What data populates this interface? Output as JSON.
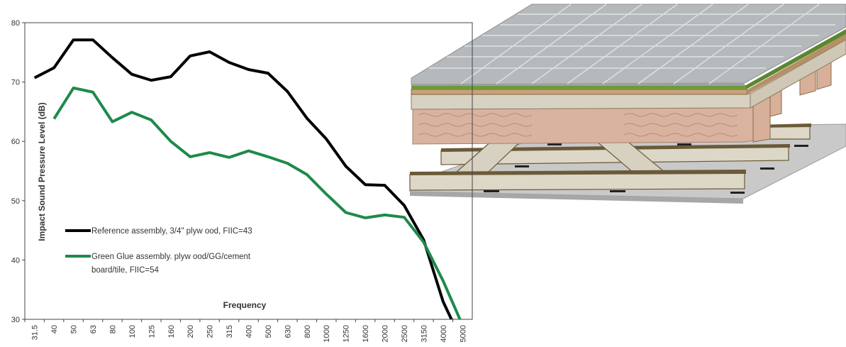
{
  "chart_data": {
    "type": "line",
    "title": "",
    "xlabel": "Frequency",
    "ylabel": "Impact Sound Pressure Level (dB)",
    "ylim": [
      30,
      80
    ],
    "yticks": [
      30,
      40,
      50,
      60,
      70,
      80
    ],
    "grid": false,
    "legend_position": "center-left",
    "categories": [
      "31.5",
      "40",
      "50",
      "63",
      "80",
      "100",
      "125",
      "160",
      "200",
      "250",
      "315",
      "400",
      "500",
      "630",
      "800",
      "1000",
      "1250",
      "1600",
      "2000",
      "2500",
      "3150",
      "4000",
      "5000"
    ],
    "series": [
      {
        "name": "Reference assembly, 3/4\" plyw ood, FIIC=43",
        "color": "#000000",
        "values": [
          70.7,
          72.4,
          77.1,
          77.1,
          74.1,
          71.3,
          70.3,
          70.9,
          74.4,
          75.1,
          73.3,
          72.1,
          71.5,
          68.4,
          63.9,
          60.4,
          55.8,
          52.7,
          52.6,
          49.2,
          43.4,
          33.0,
          26.0
        ]
      },
      {
        "name": "Green Glue assembly.  plyw ood/GG/cement board/tile, FIIC=54",
        "legend_lines": [
          "Green Glue assembly.  plyw ood/GG/cement",
          "board/tile, FIIC=54"
        ],
        "color": "#1e8a4a",
        "values": [
          null,
          63.8,
          69.0,
          68.3,
          63.3,
          64.9,
          63.6,
          60.0,
          57.4,
          58.1,
          57.3,
          58.4,
          57.4,
          56.3,
          54.4,
          51.1,
          48.0,
          47.1,
          47.6,
          47.2,
          43.0,
          36.5,
          29.0
        ]
      }
    ]
  },
  "illustration": {
    "name": "floor-assembly-cutaway",
    "colors": {
      "tile": "#b5b9bc",
      "tile_grout": "#dfe2e4",
      "green_glue": "#6d9a3a",
      "cement_board": "#c7a27a",
      "plywood": "#d8d2c3",
      "insulation": "#dab3a0",
      "joist": "#ddd7c8",
      "joist_edge": "#6b5a37",
      "ceiling": "#c9c9c9"
    }
  }
}
